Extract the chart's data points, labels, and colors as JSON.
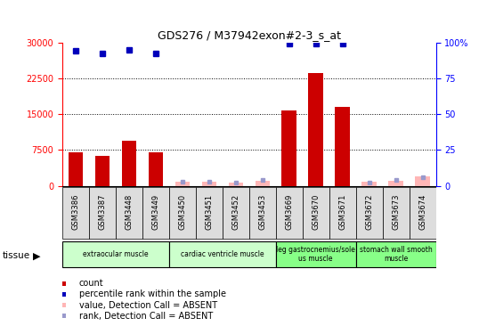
{
  "title": "GDS276 / M37942exon#2-3_s_at",
  "samples": [
    "GSM3386",
    "GSM3387",
    "GSM3448",
    "GSM3449",
    "GSM3450",
    "GSM3451",
    "GSM3452",
    "GSM3453",
    "GSM3669",
    "GSM3670",
    "GSM3671",
    "GSM3672",
    "GSM3673",
    "GSM3674"
  ],
  "bar_values": [
    7000,
    6200,
    9500,
    7000,
    0,
    0,
    0,
    0,
    15800,
    23500,
    16500,
    0,
    0,
    0
  ],
  "bar_absent": [
    false,
    false,
    false,
    false,
    true,
    true,
    true,
    true,
    false,
    false,
    false,
    true,
    true,
    true
  ],
  "absent_bar_values": [
    0,
    0,
    0,
    0,
    900,
    950,
    750,
    1100,
    0,
    0,
    0,
    850,
    1100,
    2000
  ],
  "percentile_rank": [
    94,
    92,
    95,
    92,
    null,
    null,
    null,
    null,
    99,
    99,
    99,
    null,
    null,
    null
  ],
  "absent_rank": [
    null,
    null,
    null,
    null,
    3,
    3,
    2,
    4,
    null,
    null,
    null,
    2,
    4,
    6
  ],
  "bar_color": "#cc0000",
  "absent_bar_color": "#ffb6b6",
  "rank_color": "#0000bb",
  "absent_rank_color": "#9999cc",
  "ylim_left": [
    0,
    30000
  ],
  "ylim_right": [
    0,
    100
  ],
  "yticks_left": [
    0,
    7500,
    15000,
    22500,
    30000
  ],
  "yticks_right": [
    0,
    25,
    50,
    75,
    100
  ],
  "grid_lines": [
    7500,
    15000,
    22500
  ],
  "tissue_groups": [
    {
      "label": "extraocular muscle",
      "start": 0,
      "end": 4,
      "color": "#ccffcc"
    },
    {
      "label": "cardiac ventricle muscle",
      "start": 4,
      "end": 8,
      "color": "#ccffcc"
    },
    {
      "label": "leg gastrocnemius/sole\nus muscle",
      "start": 8,
      "end": 11,
      "color": "#88ff88"
    },
    {
      "label": "stomach wall smooth\nmuscle",
      "start": 11,
      "end": 14,
      "color": "#88ff88"
    }
  ],
  "legend_items": [
    {
      "label": "count",
      "color": "#cc0000"
    },
    {
      "label": "percentile rank within the sample",
      "color": "#0000bb"
    },
    {
      "label": "value, Detection Call = ABSENT",
      "color": "#ffb6b6"
    },
    {
      "label": "rank, Detection Call = ABSENT",
      "color": "#9999cc"
    }
  ],
  "tissue_label": "tissue",
  "background_color": "#ffffff",
  "plot_bg_color": "#ffffff",
  "xtick_bg_color": "#dddddd",
  "figsize": [
    5.38,
    3.66
  ],
  "dpi": 100
}
